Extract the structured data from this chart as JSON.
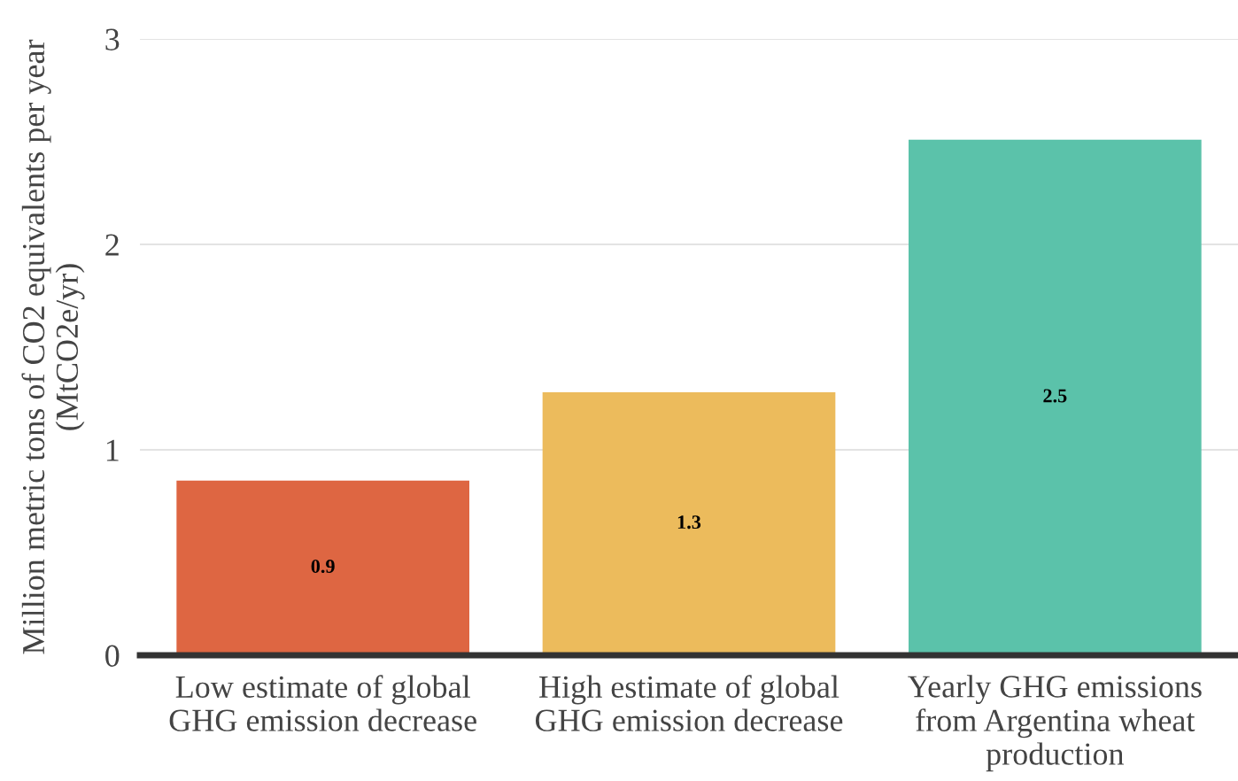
{
  "chart_data": {
    "type": "bar",
    "ylabel": "Million metric tons of CO2 equivalents per year\n(MtCO2e/yr)",
    "categories": [
      "Low estimate of global\nGHG emission decrease",
      "High estimate of global\nGHG emission decrease",
      "Yearly GHG emissions\nfrom Argentina wheat\nproduction"
    ],
    "values": [
      0.85,
      1.28,
      2.51
    ],
    "value_labels": [
      "0.9",
      "1.3",
      "2.5"
    ],
    "colors": [
      "#de6642",
      "#ecbb5c",
      "#5bc2aa"
    ],
    "ylim": [
      0,
      3
    ],
    "yticks": [
      0,
      1,
      2,
      3
    ],
    "grid": "y"
  }
}
